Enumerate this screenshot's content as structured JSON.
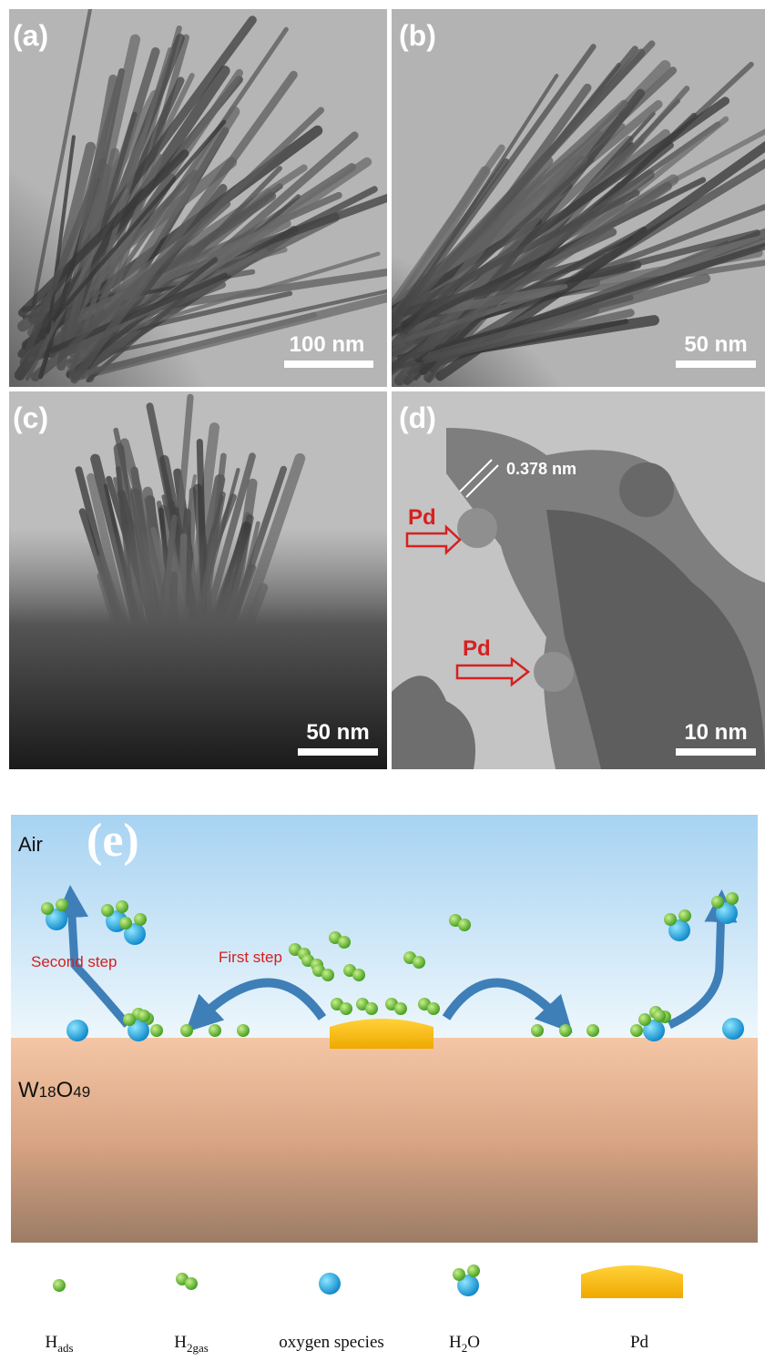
{
  "panels": [
    {
      "label": "(a)",
      "scale": "100 nm"
    },
    {
      "label": "(b)",
      "scale": "50 nm"
    },
    {
      "label": "(c)",
      "scale": "50 nm"
    },
    {
      "label": "(d)",
      "scale": "10 nm",
      "spacing": "0.378 nm",
      "arrows": [
        "Pd",
        "Pd"
      ]
    }
  ],
  "schematic": {
    "label": "(e)",
    "air": "Air",
    "substrate": [
      "W",
      "18",
      "O",
      "49"
    ],
    "steps": [
      "Second step",
      "First step"
    ]
  },
  "legend": [
    {
      "main": "H",
      "sub": "ads"
    },
    {
      "main": "H",
      "sub": "2gas"
    },
    {
      "main": "oxygen species"
    },
    {
      "main": "H",
      "sub": "2",
      "tail": "O"
    },
    {
      "main": "Pd"
    }
  ]
}
